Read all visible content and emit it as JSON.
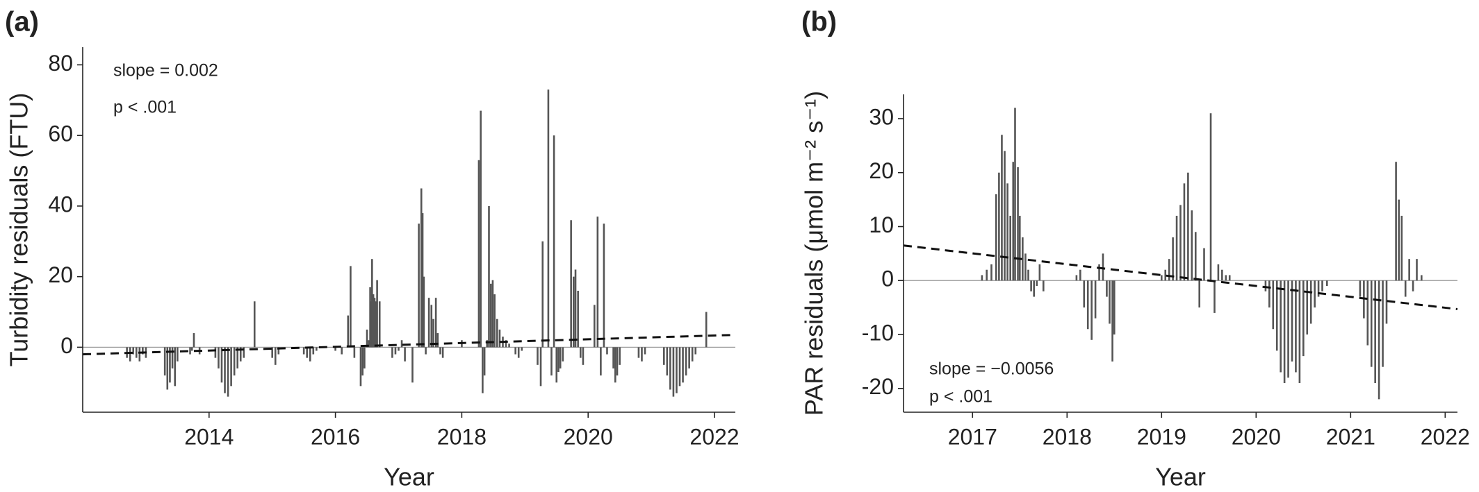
{
  "chart_data": [
    {
      "type": "bar",
      "panel_label": "(a)",
      "ylabel": "Turbidity residuals (FTU)",
      "xlabel": "Year",
      "annotations": [
        "slope = 0.002",
        "p < .001"
      ],
      "color": "#555555",
      "xlim": [
        2012.0,
        2022.33
      ],
      "xticks": [
        2014,
        2016,
        2018,
        2020,
        2022
      ],
      "ylim": [
        -18.4,
        85
      ],
      "yticks": [
        0,
        20,
        40,
        60,
        80
      ],
      "x": [
        2012.7,
        2012.75,
        2012.8,
        2012.85,
        2012.9,
        2012.95,
        2013.0,
        2013.3,
        2013.34,
        2013.38,
        2013.42,
        2013.46,
        2013.5,
        2013.7,
        2013.73,
        2013.76,
        2013.85,
        2014.1,
        2014.15,
        2014.2,
        2014.25,
        2014.3,
        2014.35,
        2014.4,
        2014.45,
        2014.5,
        2014.55,
        2014.72,
        2015.0,
        2015.05,
        2015.1,
        2015.5,
        2015.55,
        2015.6,
        2015.65,
        2015.7,
        2016.0,
        2016.1,
        2016.2,
        2016.24,
        2016.3,
        2016.4,
        2016.43,
        2016.46,
        2016.5,
        2016.53,
        2016.55,
        2016.57,
        2016.58,
        2016.6,
        2016.62,
        2016.64,
        2016.66,
        2016.7,
        2016.9,
        2016.95,
        2017.0,
        2017.05,
        2017.1,
        2017.22,
        2017.32,
        2017.36,
        2017.38,
        2017.4,
        2017.43,
        2017.48,
        2017.52,
        2017.55,
        2017.59,
        2017.62,
        2017.66,
        2017.7,
        2018.0,
        2018.27,
        2018.3,
        2018.33,
        2018.36,
        2018.4,
        2018.43,
        2018.46,
        2018.49,
        2018.52,
        2018.56,
        2018.6,
        2018.65,
        2018.7,
        2018.75,
        2018.85,
        2018.9,
        2018.95,
        2019.2,
        2019.25,
        2019.28,
        2019.37,
        2019.42,
        2019.46,
        2019.5,
        2019.53,
        2019.56,
        2019.6,
        2019.73,
        2019.77,
        2019.8,
        2019.84,
        2019.88,
        2019.92,
        2020.1,
        2020.15,
        2020.2,
        2020.25,
        2020.3,
        2020.4,
        2020.43,
        2020.46,
        2020.5,
        2020.8,
        2020.85,
        2020.9,
        2021.2,
        2021.25,
        2021.3,
        2021.35,
        2021.4,
        2021.45,
        2021.5,
        2021.55,
        2021.6,
        2021.65,
        2021.7,
        2021.87
      ],
      "values": [
        -3,
        -4,
        -2,
        -3,
        -4,
        -2,
        -3,
        -8,
        -12,
        -10,
        -6,
        -11,
        -4,
        -2,
        -1,
        4,
        -2,
        -3,
        -6,
        -10,
        -13,
        -14,
        -11,
        -8,
        -6,
        -4,
        -3,
        13,
        -3,
        -5,
        -2,
        -2,
        -3,
        -4,
        -2,
        -1,
        -1,
        -2,
        9,
        23,
        -3,
        -11,
        -8,
        -6,
        5,
        2,
        17,
        13,
        25,
        15,
        14,
        13,
        19,
        13,
        -3,
        -2,
        -1,
        2,
        -4,
        -10,
        35,
        45,
        38,
        20,
        -2,
        14,
        12,
        8,
        14,
        4,
        -2,
        -3,
        2,
        53,
        67,
        -13,
        -8,
        2,
        40,
        18,
        19,
        15,
        8,
        5,
        3,
        2,
        1,
        -2,
        -3,
        -1,
        -5,
        -11,
        30,
        73,
        -8,
        60,
        -10,
        -7,
        -6,
        -4,
        36,
        20,
        22,
        16,
        -3,
        -5,
        12,
        37,
        -8,
        35,
        -2,
        -6,
        -10,
        -8,
        -5,
        -3,
        -4,
        -2,
        -5,
        -8,
        -12,
        -14,
        -13,
        -11,
        -10,
        -8,
        -6,
        -4,
        -2,
        10
      ],
      "trend": {
        "x": [
          2012.0,
          2022.33
        ],
        "y": [
          -2,
          3.5
        ]
      }
    },
    {
      "type": "bar",
      "panel_label": "(b)",
      "ylabel": "PAR residuals (μmol m⁻² s⁻¹)",
      "xlabel": "Year",
      "annotations": [
        "slope = −0.0056",
        "p < .001"
      ],
      "color": "#555555",
      "xlim": [
        2016.27,
        2022.13
      ],
      "xticks": [
        2017,
        2018,
        2019,
        2020,
        2021,
        2022
      ],
      "ylim": [
        -24.4,
        34.5
      ],
      "yticks": [
        -20,
        -10,
        0,
        10,
        20,
        30
      ],
      "x": [
        2017.1,
        2017.15,
        2017.2,
        2017.25,
        2017.28,
        2017.31,
        2017.34,
        2017.37,
        2017.4,
        2017.43,
        2017.45,
        2017.48,
        2017.5,
        2017.53,
        2017.56,
        2017.59,
        2017.62,
        2017.65,
        2017.68,
        2017.71,
        2017.75,
        2018.1,
        2018.14,
        2018.18,
        2018.22,
        2018.26,
        2018.3,
        2018.34,
        2018.38,
        2018.42,
        2018.45,
        2018.48,
        2018.5,
        2019.0,
        2019.04,
        2019.08,
        2019.12,
        2019.16,
        2019.2,
        2019.24,
        2019.28,
        2019.32,
        2019.36,
        2019.4,
        2019.45,
        2019.52,
        2019.56,
        2019.6,
        2019.64,
        2019.68,
        2019.72,
        2020.1,
        2020.14,
        2020.18,
        2020.22,
        2020.26,
        2020.3,
        2020.34,
        2020.38,
        2020.42,
        2020.46,
        2020.5,
        2020.54,
        2020.58,
        2020.62,
        2020.66,
        2020.7,
        2020.75,
        2021.1,
        2021.14,
        2021.18,
        2021.22,
        2021.26,
        2021.3,
        2021.34,
        2021.38,
        2021.48,
        2021.51,
        2021.54,
        2021.58,
        2021.62,
        2021.66,
        2021.7,
        2021.75
      ],
      "values": [
        1,
        2,
        3,
        16,
        20,
        27,
        24,
        18,
        12,
        22,
        32,
        21,
        12,
        8,
        5,
        2,
        -2,
        -3,
        -1,
        3,
        -2,
        1,
        2,
        -5,
        -9,
        -11,
        -7,
        3,
        5,
        -3,
        -8,
        -15,
        -10,
        1,
        2,
        4,
        8,
        12,
        14,
        18,
        20,
        13,
        9,
        -5,
        6,
        31,
        -6,
        3,
        2,
        1,
        1,
        -2,
        -5,
        -9,
        -13,
        -17,
        -19,
        -18,
        -15,
        -17,
        -19,
        -14,
        -10,
        -8,
        -5,
        -3,
        -2,
        -1,
        -3,
        -7,
        -12,
        -16,
        -19,
        -22,
        -16,
        -8,
        22,
        15,
        12,
        -3,
        4,
        -2,
        4,
        1
      ],
      "trend": {
        "x": [
          2016.27,
          2022.13
        ],
        "y": [
          6.5,
          -5.3
        ]
      }
    }
  ]
}
